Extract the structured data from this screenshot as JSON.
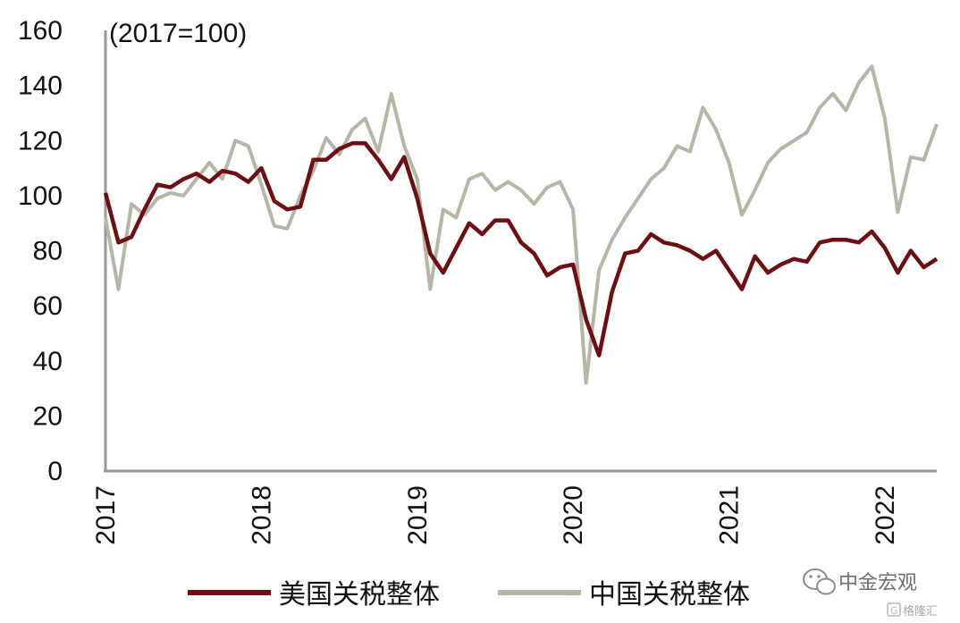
{
  "chart_data": {
    "type": "line",
    "unit_label": "(2017=100)",
    "ylim": [
      0,
      160
    ],
    "yticks": [
      0,
      20,
      40,
      60,
      80,
      100,
      120,
      140,
      160
    ],
    "xlim": [
      "2017-01",
      "2022-05"
    ],
    "xtick_labels": [
      "2017",
      "2018",
      "2019",
      "2020",
      "2021",
      "2022"
    ],
    "grid": false,
    "legend_position": "bottom",
    "x": [
      "2017-01",
      "2017-02",
      "2017-03",
      "2017-04",
      "2017-05",
      "2017-06",
      "2017-07",
      "2017-08",
      "2017-09",
      "2017-10",
      "2017-11",
      "2017-12",
      "2018-01",
      "2018-02",
      "2018-03",
      "2018-04",
      "2018-05",
      "2018-06",
      "2018-07",
      "2018-08",
      "2018-09",
      "2018-10",
      "2018-11",
      "2018-12",
      "2019-01",
      "2019-02",
      "2019-03",
      "2019-04",
      "2019-05",
      "2019-06",
      "2019-07",
      "2019-08",
      "2019-09",
      "2019-10",
      "2019-11",
      "2019-12",
      "2020-01",
      "2020-02",
      "2020-03",
      "2020-04",
      "2020-05",
      "2020-06",
      "2020-07",
      "2020-08",
      "2020-09",
      "2020-10",
      "2020-11",
      "2020-12",
      "2021-01",
      "2021-02",
      "2021-03",
      "2021-04",
      "2021-05",
      "2021-06",
      "2021-07",
      "2021-08",
      "2021-09",
      "2021-10",
      "2021-11",
      "2021-12",
      "2022-01",
      "2022-02",
      "2022-03",
      "2022-04",
      "2022-05"
    ],
    "series": [
      {
        "name": "美国关税整体",
        "color": "#6b0f14",
        "values": [
          101,
          83,
          85,
          95,
          104,
          103,
          106,
          108,
          105,
          109,
          108,
          105,
          110,
          98,
          95,
          96,
          113,
          113,
          117,
          119,
          119,
          113,
          106,
          114,
          99,
          79,
          72,
          81,
          90,
          86,
          91,
          91,
          83,
          79,
          71,
          74,
          75,
          55,
          42,
          65,
          79,
          80,
          86,
          83,
          82,
          80,
          77,
          80,
          73,
          66,
          78,
          72,
          75,
          77,
          76,
          83,
          84,
          84,
          83,
          87,
          81,
          72,
          80,
          74,
          77
        ]
      },
      {
        "name": "中国关税整体",
        "color": "#b7b5a6",
        "values": [
          92,
          66,
          97,
          93,
          99,
          101,
          100,
          106,
          112,
          106,
          120,
          118,
          104,
          89,
          88,
          100,
          109,
          121,
          115,
          124,
          128,
          116,
          137,
          118,
          106,
          66,
          95,
          92,
          106,
          108,
          102,
          105,
          102,
          97,
          103,
          105,
          95,
          32,
          73,
          84,
          92,
          99,
          106,
          110,
          118,
          116,
          132,
          124,
          112,
          93,
          102,
          112,
          117,
          120,
          123,
          132,
          137,
          131,
          141,
          147,
          128,
          94,
          114,
          113,
          126
        ]
      }
    ]
  },
  "watermark": {
    "brand_text": "中金宏观",
    "site_text": "格隆汇"
  }
}
